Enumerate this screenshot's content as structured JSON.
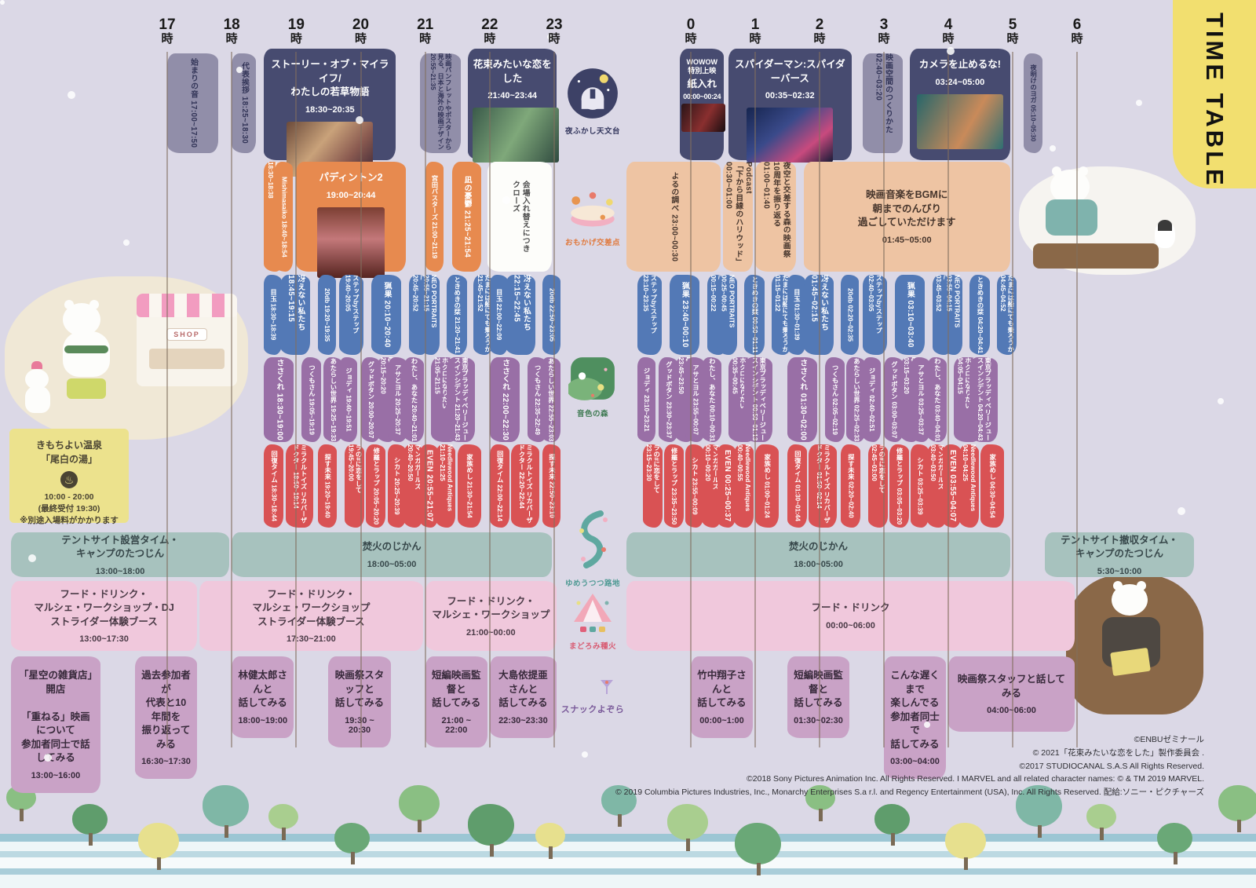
{
  "title": "TIME TABLE",
  "hours": {
    "labels": [
      "17",
      "18",
      "19",
      "20",
      "21",
      "22",
      "23",
      "0",
      "1",
      "2",
      "3",
      "4",
      "5",
      "6"
    ],
    "suffix": "時"
  },
  "stages": [
    {
      "label": "夜ふかし天文台"
    },
    {
      "label": "おもかげ交差点"
    },
    {
      "label": "音色の森"
    },
    {
      "label": "ゆめうつつ路地"
    },
    {
      "label": "まどろみ種火"
    },
    {
      "label": "スナックよぞら"
    }
  ],
  "decor": {
    "shop_sign": "SHOP"
  },
  "notes": {
    "onsen_title": "きもちよい温泉\n「尾白の湯」",
    "onsen_icon": "♨",
    "onsen_time": "10:00 - 20:00\n(最終受付 19:30)",
    "onsen_caution": "※別途入場料がかかります"
  },
  "credits": [
    "©ENBUゼミナール",
    "© 2021「花束みたいな恋をした」製作委員会 .",
    "©2017 STUDIOCANAL S.A.S All Rights Reserved.",
    "©2018 Sony Pictures Animation Inc. All Rights Reserved. I MARVEL and all related character names: © & TM 2019 MARVEL.",
    "© 2019 Columbia Pictures Industries, Inc., Monarchy Enterprises S.a r.l. and Regency Entertainment (USA), Inc. All Rights Reserved. 配給:ソニー・ピクチャーズ"
  ],
  "schedule": [
    {
      "id": "feature",
      "cls": "row-main",
      "blocks": [
        {
          "t": "始まりの音",
          "m": "17:00~17:50",
          "va": "gray",
          "v": 1
        },
        {
          "t": "代表挨拶",
          "m": "18:25~18:30",
          "va": "gray",
          "v": 1,
          "ls": "18:00",
          "le": "18:25"
        },
        {
          "t": "ストーリー・オブ・マイライフ/\nわたしの若草物語",
          "m": "18:30~20:35",
          "va": "navy",
          "img": "littlewomen"
        },
        {
          "t": "映画パンフレットやポスターから見る、日本と海外の映画デザイン",
          "m": "20:55~21:35",
          "va": "gray",
          "v": 1
        },
        {
          "t": "花束みたいな恋をした",
          "m": "21:40~23:44",
          "va": "navy",
          "img": "hanataba"
        },
        {
          "pre": "WOWOW\n特別上映",
          "t": "紙入れ",
          "m": "00:00~00:24",
          "va": "navy",
          "img": "kamiire",
          "small": 1,
          "ls": "23:50",
          "le": "00:33"
        },
        {
          "t": "スパイダーマン:スパイダーバース",
          "m": "00:35~02:32",
          "va": "navy",
          "img": "spiderverse"
        },
        {
          "t": "映画空間のつくりかた",
          "m": "02:40~03:20",
          "va": "gray",
          "v": 1
        },
        {
          "t": "カメラを止めるな!",
          "m": "03:24~05:00",
          "va": "navy",
          "img": "camera"
        },
        {
          "t": "夜明けのヨガ",
          "m": "05:10~05:30",
          "va": "gray",
          "v": 1
        }
      ]
    },
    {
      "id": "omokage",
      "cls": "row-omokage",
      "blocks": [
        {
          "t": "映画の妖精 フィルとムー",
          "m": "18:30~18:38",
          "va": "orange",
          "v": 1
        },
        {
          "t": "Mishimasaiko",
          "m": "18:40~18:54",
          "va": "orange",
          "v": 1
        },
        {
          "t": "パディントン2",
          "m": "19:00~20:44",
          "va": "orange",
          "img": "paddington"
        },
        {
          "t": "宮田バスターズ",
          "m": "21:00~21:19",
          "va": "orange",
          "v": 1
        },
        {
          "t": "凪の憂鬱",
          "m": "21:25~21:54",
          "va": "orange",
          "v": 1
        },
        {
          "t": "会場入れ替えにつき\nクローズ",
          "m": "",
          "va": "white",
          "v": 1,
          "ls": "21:58",
          "le": "23:00"
        },
        {
          "t": "よるの調べ",
          "m": "23:00~00:30",
          "va": "peach",
          "v": 1
        },
        {
          "t": "Podcast\n「下から目線のハリウッド」",
          "m": "00:30~01:00",
          "va": "peach",
          "v": 1
        },
        {
          "t": "夜空と交差する森の映画祭\n10周年を振り返る",
          "m": "01:00~01:40",
          "va": "peach",
          "v": 1
        },
        {
          "t": "映画音楽をBGMに\n朝までのんびり\n過ごしていただけます",
          "m": "01:45~05:00",
          "va": "peach"
        }
      ]
    },
    {
      "id": "short-blue",
      "cls": "row-blue",
      "va": "blue",
      "v": 1,
      "blocks": [
        {
          "t": "目玉",
          "m": "18:30~18:39"
        },
        {
          "t": "冴えない私たち",
          "m": "18:45~19:15"
        },
        {
          "t": "20db",
          "m": "19:20~19:35"
        },
        {
          "t": "ステップbyステップ",
          "m": "19:40~20:05"
        },
        {
          "t": "猟果",
          "m": "20:10~20:40"
        },
        {
          "t": "ぼくがこわい黒いもの",
          "m": "20:45~20:52"
        },
        {
          "t": "NEO PORTRAITS",
          "m": "20:55~21:15"
        },
        {
          "t": "ときめきの栞",
          "m": "21:20~21:41"
        },
        {
          "t": "たまには船にても乗ろうか",
          "m": "21:45~21:52"
        },
        {
          "t": "目玉",
          "m": "22:00~22:09"
        },
        {
          "t": "冴えない私たち",
          "m": "22:15~22:45"
        },
        {
          "t": "20db",
          "m": "22:50~23:05"
        },
        {
          "t": "ステップbyステップ",
          "m": "23:10~23:35"
        },
        {
          "t": "猟果",
          "m": "23:40~00:10"
        },
        {
          "t": "ぼくがこわい黒いもの",
          "m": "00:15~00:22"
        },
        {
          "t": "NEO PORTRAITS",
          "m": "00:25~00:45"
        },
        {
          "t": "ときめきの栞",
          "m": "00:50~01:11"
        },
        {
          "t": "たまには船にても乗ろうか",
          "m": "01:15~01:22"
        },
        {
          "t": "目玉",
          "m": "01:30~01:39"
        },
        {
          "t": "冴えない私たち",
          "m": "01:45~02:15"
        },
        {
          "t": "20db",
          "m": "02:20~02:35"
        },
        {
          "t": "ステップbyステップ",
          "m": "02:40~03:05"
        },
        {
          "t": "猟果",
          "m": "03:10~03:40"
        },
        {
          "t": "ぼくがこわい黒いもの",
          "m": "03:45~03:52"
        },
        {
          "t": "NEO PORTRAITS",
          "m": "03:55~04:15"
        },
        {
          "t": "ときめきの栞",
          "m": "04:20~04:41"
        },
        {
          "t": "たまには船にても乗ろうか",
          "m": "04:45~04:52"
        }
      ]
    },
    {
      "id": "short-purple",
      "cls": "row-purple",
      "va": "purple",
      "v": 1,
      "blocks": [
        {
          "t": "ささくれ",
          "m": "18:30~19:00"
        },
        {
          "t": "つくもさん",
          "m": "19:05~19:19"
        },
        {
          "t": "あたらしい世界",
          "m": "19:25~19:33"
        },
        {
          "t": "ジョディ",
          "m": "19:40~19:51"
        },
        {
          "t": "グッドボタン",
          "m": "20:00~20:07"
        },
        {
          "t": "優しいインコが暮らす街",
          "m": "20:15~20:20"
        },
        {
          "t": "アサとヨル",
          "m": "20:25~20:37"
        },
        {
          "t": "わたし、あなた",
          "m": "20:40~21:01"
        },
        {
          "t": "来世ユニコーンの首筋後ろのホクロになりたい",
          "m": "21:05~21:15"
        },
        {
          "t": "東京ブラッディベリージュースインシデント",
          "m": "21:20~21:43"
        },
        {
          "t": "ささくれ",
          "m": "22:00~22:30"
        },
        {
          "t": "つくもさん",
          "m": "22:35~22:49"
        },
        {
          "t": "あたらしい世界",
          "m": "22:55~23:03"
        },
        {
          "t": "ジョディ",
          "m": "23:10~23:21"
        },
        {
          "t": "グッドボタン",
          "m": "23:30~23:37"
        },
        {
          "t": "優しいインコが暮らす街",
          "m": "23:45~23:50"
        },
        {
          "t": "アサとヨル",
          "m": "23:55~00:07"
        },
        {
          "t": "わたし、あなた",
          "m": "00:10~00:31"
        },
        {
          "t": "来世ユニコーンの首筋後ろのホクロになりたい",
          "m": "00:35~00:45"
        },
        {
          "t": "東京ブラッディベリージュースインシデント",
          "m": "00:50~01:13"
        },
        {
          "t": "ささくれ",
          "m": "01:30~02:00"
        },
        {
          "t": "つくもさん",
          "m": "02:05~02:19"
        },
        {
          "t": "あたらしい世界",
          "m": "02:25~02:33"
        },
        {
          "t": "ジョディ",
          "m": "02:40~02:51"
        },
        {
          "t": "グッドボタン",
          "m": "03:00~03:07"
        },
        {
          "t": "優しいインコが暮らす街",
          "m": "03:15~03:20"
        },
        {
          "t": "アサとヨル",
          "m": "03:25~03:37"
        },
        {
          "t": "わたし、あなた",
          "m": "03:40~04:01"
        },
        {
          "t": "来世ユニコーンの首筋後ろのホクロになりたい",
          "m": "04:05~04:15"
        },
        {
          "t": "東京ブラッディベリージュースインシデント",
          "m": "04:20~04:43"
        }
      ]
    },
    {
      "id": "short-red",
      "cls": "row-red",
      "va": "red",
      "v": 1,
      "blocks": [
        {
          "t": "回復タイム",
          "m": "18:30~18:44"
        },
        {
          "t": "ミラクルトイズ リカバーザ ドクター",
          "m": "18:50~19:14"
        },
        {
          "t": "探す未来",
          "m": "19:20~19:40"
        },
        {
          "t": "ラの#に恋をして",
          "m": "19:45~20:00"
        },
        {
          "t": "修羅とラップ",
          "m": "20:05~20:20"
        },
        {
          "t": "シカト",
          "m": "20:25~20:39"
        },
        {
          "t": "マンガガールズ",
          "m": "20:40~20:50"
        },
        {
          "t": "EVEN",
          "m": "20:55~21:07"
        },
        {
          "t": "Needlewood Antiques",
          "m": "21:10~21:25"
        },
        {
          "t": "家族めし",
          "m": "21:30~21:54"
        },
        {
          "t": "回復タイム",
          "m": "22:00~22:14"
        },
        {
          "t": "ミラクルトイズ リカバーザ ドクター",
          "m": "22:20~22:44"
        },
        {
          "t": "探す未来",
          "m": "22:50~23:10"
        },
        {
          "t": "ラの#に恋をして",
          "m": "23:15~23:30"
        },
        {
          "t": "修羅とラップ",
          "m": "23:35~23:50"
        },
        {
          "t": "シカト",
          "m": "23:55~00:09"
        },
        {
          "t": "マンガガールズ",
          "m": "00:10~00:20"
        },
        {
          "t": "EVEN",
          "m": "00:25~00:37"
        },
        {
          "t": "Needlewood Antiques",
          "m": "00:40~00:55"
        },
        {
          "t": "家族めし",
          "m": "01:00~01:24"
        },
        {
          "t": "回復タイム",
          "m": "01:30~01:44"
        },
        {
          "t": "ミラクルトイズ リカバーザ ドクター",
          "m": "01:50~02:14"
        },
        {
          "t": "探す未来",
          "m": "02:20~02:40"
        },
        {
          "t": "ラの#に恋をして",
          "m": "02:45~03:00"
        },
        {
          "t": "修羅とラップ",
          "m": "03:05~03:20"
        },
        {
          "t": "シカト",
          "m": "03:25~03:39"
        },
        {
          "t": "マンガガールズ",
          "m": "03:40~03:50"
        },
        {
          "t": "EVEN",
          "m": "03:55~04:07"
        },
        {
          "t": "Needlewood Antiques",
          "m": "04:10~04:25"
        },
        {
          "t": "家族めし",
          "m": "04:30~04:54"
        }
      ]
    },
    {
      "id": "camp",
      "cls": "row-camp",
      "va": "teal",
      "blocks": [
        {
          "t": "テントサイト設営タイム・\nキャンプのたつじん",
          "m": "13:00~18:00"
        },
        {
          "t": "焚火のじかん",
          "m": "18:00~05:00",
          "ls": "18:00",
          "le": "23:00"
        },
        {
          "t": "焚火のじかん",
          "m": "18:00~05:00",
          "ls": "23:00",
          "le": "05:00"
        },
        {
          "t": "テントサイト撤収タイム・\nキャンプのたつじん",
          "m": "5:30~10:00"
        }
      ]
    },
    {
      "id": "food",
      "cls": "row-food",
      "va": "pink",
      "blocks": [
        {
          "t": "フード・ドリンク・\nマルシェ・ワークショップ・DJ\nストライダー体験ブース",
          "m": "13:00~17:30"
        },
        {
          "t": "フード・ドリンク・\nマルシェ・ワークショップ\nストライダー体験ブース",
          "m": "17:30~21:00"
        },
        {
          "t": "フード・ドリンク・\nマルシェ・ワークショップ",
          "m": "21:00~00:00"
        },
        {
          "t": "フード・ドリンク",
          "m": "00:00~06:00",
          "ls": "23:00",
          "le": "06:00"
        }
      ]
    },
    {
      "id": "talk",
      "cls": "row-talk",
      "va": "talk",
      "blocks": [
        {
          "t": "「星空の雑貨店」開店\n\n「重ねる」映画について\n参加者同士で話してみる",
          "m": "13:00~16:00"
        },
        {
          "t": "過去参加者が\n代表と10年間を\n振り返ってみる",
          "m": "16:30~17:30"
        },
        {
          "t": "林健太郎さんと\n話してみる",
          "m": "18:00~19:00"
        },
        {
          "t": "映画祭スタッフと\n話してみる",
          "m": "19:30 ~ 20:30"
        },
        {
          "t": "短編映画監督と\n話してみる",
          "m": "21:00 ~ 22:00"
        },
        {
          "t": "大島依提亜さんと\n話してみる",
          "m": "22:30~23:30",
          "ls": "22:00"
        },
        {
          "t": "竹中翔子さんと\n話してみる",
          "m": "00:00~1:00"
        },
        {
          "t": "短編映画監督と\n話してみる",
          "m": "01:30~02:30"
        },
        {
          "t": "こんな遅くまで\n楽しんでる\n参加者同士で\n話してみる",
          "m": "03:00~04:00"
        },
        {
          "t": "映画祭スタッフと話してみる",
          "m": "04:00~06:00"
        }
      ]
    }
  ]
}
